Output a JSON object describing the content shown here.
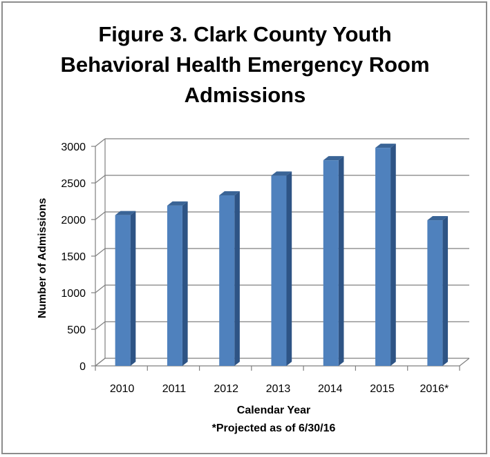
{
  "chart_data": {
    "type": "bar",
    "title_lines": [
      "Figure 3. Clark County Youth",
      "Behavioral Health Emergency Room",
      "Admissions"
    ],
    "categories": [
      "2010",
      "2011",
      "2012",
      "2013",
      "2014",
      "2015",
      "2016*"
    ],
    "values": [
      2060,
      2190,
      2330,
      2600,
      2810,
      2980,
      1990
    ],
    "xlabel": "Calendar Year",
    "note": "*Projected as of 6/30/16",
    "ylabel": "Number of Admissions",
    "ylim": [
      0,
      3000
    ],
    "yticks": [
      "0",
      "500",
      "1000",
      "1500",
      "2000",
      "2500",
      "3000"
    ],
    "grid": true,
    "legend": "none",
    "colors": {
      "bar_front": "#4f81bd",
      "bar_side": "#2e5485",
      "bar_top": "#3a6496",
      "grid": "#7f7f7f"
    }
  }
}
